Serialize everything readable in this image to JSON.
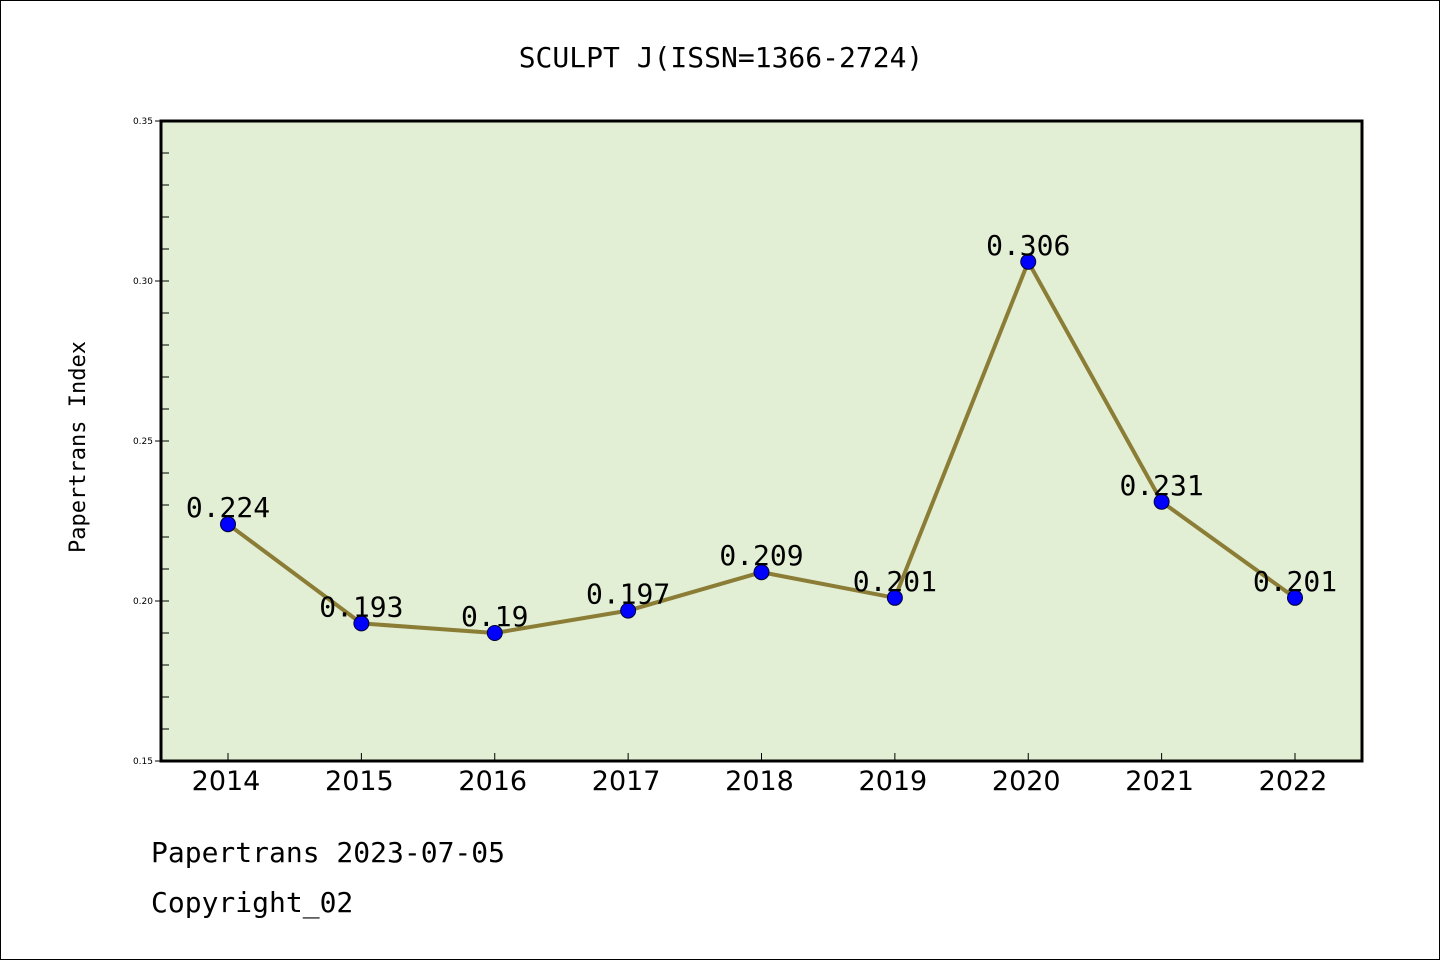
{
  "chart_data": {
    "type": "line",
    "title": "SCULPT J(ISSN=1366-2724)",
    "xlabel": "",
    "ylabel": "Papertrans Index",
    "categories": [
      "2014",
      "2015",
      "2016",
      "2017",
      "2018",
      "2019",
      "2020",
      "2021",
      "2022"
    ],
    "values": [
      0.224,
      0.193,
      0.19,
      0.197,
      0.209,
      0.201,
      0.306,
      0.231,
      0.201
    ],
    "data_labels": [
      "0.224",
      "0.193",
      "0.19",
      "0.197",
      "0.209",
      "0.201",
      "0.306",
      "0.231",
      "0.201"
    ],
    "ylim": [
      0.15,
      0.35
    ],
    "y_ticks": [
      0.15,
      0.2,
      0.25,
      0.3,
      0.35
    ],
    "y_tick_labels": [
      "0.15",
      "0.20",
      "0.25",
      "0.30",
      "0.35"
    ],
    "grid": false,
    "legend": "none",
    "colors": {
      "plot_background": "#e2efd4",
      "line": "#8b7d35",
      "marker": "#0000ff"
    }
  },
  "footer": {
    "date_text": "Papertrans 2023-07-05",
    "copyright_text": "Copyright_02"
  }
}
